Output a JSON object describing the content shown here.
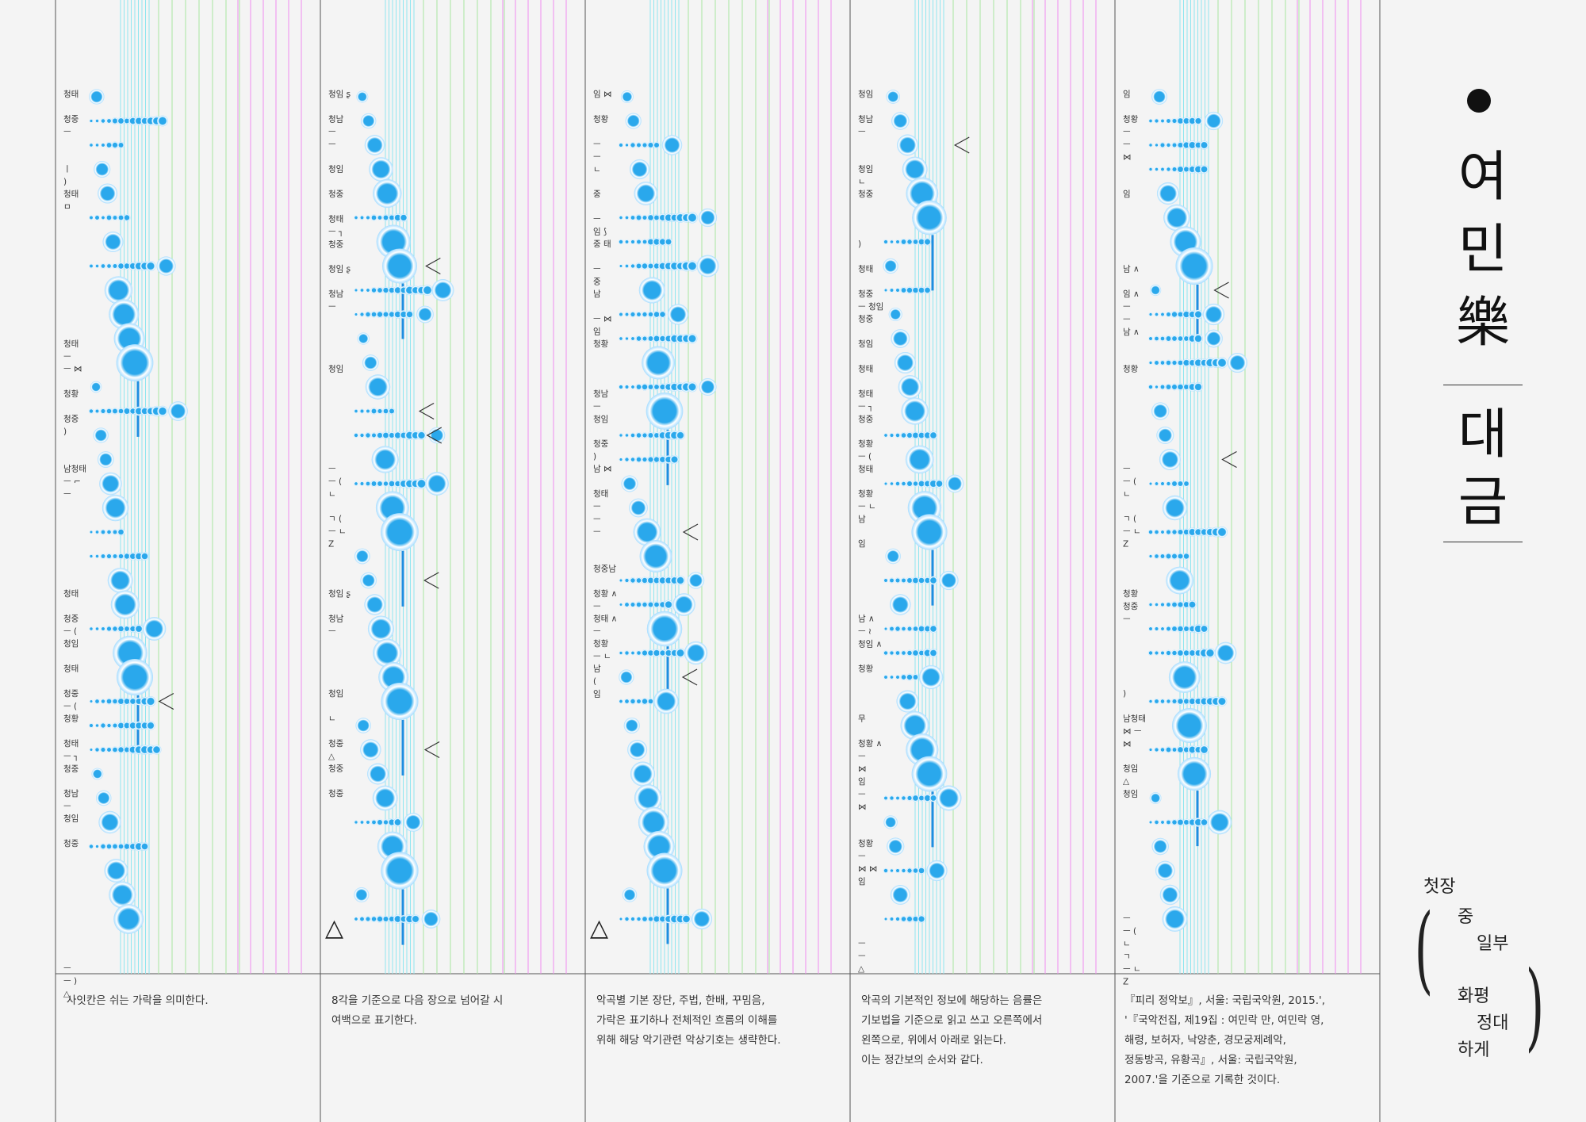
{
  "score": {
    "columns": [
      {
        "id": "col1",
        "labels": [
          {
            "lines": [
              "청태"
            ],
            "row": 0
          },
          {
            "lines": [
              "청중",
              "ㅡ"
            ],
            "row": 1
          },
          {
            "lines": [
              "ㅣ",
              ")"
            ],
            "row": 3
          },
          {
            "lines": [
              "청태",
              "ㅁ"
            ],
            "row": 4
          },
          {
            "lines": [
              "청태",
              "ㅡ"
            ],
            "row": 10
          },
          {
            "lines": [
              "ㅡ ⋈"
            ],
            "row": 11
          },
          {
            "lines": [
              "청황"
            ],
            "row": 12
          },
          {
            "lines": [
              "청중",
              ")"
            ],
            "row": 13
          },
          {
            "lines": [
              "남청태",
              "ㅡ ⌐",
              "ㅡ"
            ],
            "row": 15
          },
          {
            "lines": [
              "청태"
            ],
            "row": 20
          },
          {
            "lines": [
              "청중",
              "ㅡ ("
            ],
            "row": 21
          },
          {
            "lines": [
              "청임"
            ],
            "row": 22
          },
          {
            "lines": [
              "청태"
            ],
            "row": 23
          },
          {
            "lines": [
              "청중",
              "ㅡ ("
            ],
            "row": 24
          },
          {
            "lines": [
              "청황"
            ],
            "row": 25
          },
          {
            "lines": [
              "청태",
              "ㅡ ┐",
              "청중"
            ],
            "row": 26
          },
          {
            "lines": [
              "청남",
              "ㅡ"
            ],
            "row": 28
          },
          {
            "lines": [
              "청임"
            ],
            "row": 29
          },
          {
            "lines": [
              "청중"
            ],
            "row": 30
          },
          {
            "lines": [
              "ㅡ",
              "ㅡ )",
              "△"
            ],
            "row": 35
          }
        ]
      },
      {
        "id": "col2",
        "labels": [
          {
            "lines": [
              "청임 ʂ"
            ],
            "row": 0
          },
          {
            "lines": [
              "청남",
              "ㅡ",
              "ㅡ"
            ],
            "row": 1
          },
          {
            "lines": [
              "청임"
            ],
            "row": 3
          },
          {
            "lines": [
              "청중"
            ],
            "row": 4
          },
          {
            "lines": [
              "청태",
              "ㅡ ┐",
              "청중"
            ],
            "row": 5
          },
          {
            "lines": [
              "청임 ʂ"
            ],
            "row": 7
          },
          {
            "lines": [
              "청남",
              "ㅡ"
            ],
            "row": 8
          },
          {
            "lines": [
              "청임"
            ],
            "row": 11
          },
          {
            "lines": [
              "ㅡ",
              "ㅡ (",
              "ㄴ"
            ],
            "row": 15
          },
          {
            "lines": [
              "ㄱ (",
              "ㅡ ㄴ",
              "Z"
            ],
            "row": 17
          },
          {
            "lines": [
              "청임 ʂ"
            ],
            "row": 20
          },
          {
            "lines": [
              "청남",
              "ㅡ"
            ],
            "row": 21
          },
          {
            "lines": [
              "청임"
            ],
            "row": 24
          },
          {
            "lines": [
              "ㄴ"
            ],
            "row": 25
          },
          {
            "lines": [
              "청중",
              "△"
            ],
            "row": 26
          },
          {
            "lines": [
              "청중"
            ],
            "row": 27
          },
          {
            "lines": [
              "청중"
            ],
            "row": 28
          }
        ],
        "bottom_mark": "△"
      },
      {
        "id": "col3",
        "labels": [
          {
            "lines": [
              "임 ⋈"
            ],
            "row": 0
          },
          {
            "lines": [
              "청황"
            ],
            "row": 1
          },
          {
            "lines": [
              "ㅡ",
              "ㅡ",
              "ㄴ"
            ],
            "row": 2
          },
          {
            "lines": [
              "중"
            ],
            "row": 4
          },
          {
            "lines": [
              "ㅡ",
              "임 ⟆"
            ],
            "row": 5
          },
          {
            "lines": [
              "중 태"
            ],
            "row": 6
          },
          {
            "lines": [
              "ㅡ",
              "중"
            ],
            "row": 7
          },
          {
            "lines": [
              "남"
            ],
            "row": 8
          },
          {
            "lines": [
              "ㅡ ⋈",
              "임"
            ],
            "row": 9
          },
          {
            "lines": [
              "청황"
            ],
            "row": 10
          },
          {
            "lines": [
              "청남",
              "ㅡ",
              "청임"
            ],
            "row": 12
          },
          {
            "lines": [
              "청중",
              ")"
            ],
            "row": 14
          },
          {
            "lines": [
              "남 ⋈"
            ],
            "row": 15
          },
          {
            "lines": [
              "청태",
              "ㅡ",
              "ㅡ",
              "ㅡ"
            ],
            "row": 16
          },
          {
            "lines": [
              "청중남"
            ],
            "row": 19
          },
          {
            "lines": [
              "청황 ∧",
              "ㅡ"
            ],
            "row": 20
          },
          {
            "lines": [
              "청태 ∧",
              "ㅡ"
            ],
            "row": 21
          },
          {
            "lines": [
              "청황",
              "ㅡ ㄴ"
            ],
            "row": 22
          },
          {
            "lines": [
              "남",
              "(",
              "임"
            ],
            "row": 23
          }
        ],
        "bottom_mark": "△"
      },
      {
        "id": "col4",
        "labels": [
          {
            "lines": [
              "청임"
            ],
            "row": 0
          },
          {
            "lines": [
              "청남",
              "ㅡ"
            ],
            "row": 1
          },
          {
            "lines": [
              "청임",
              "ㄴ"
            ],
            "row": 3
          },
          {
            "lines": [
              "청중"
            ],
            "row": 4
          },
          {
            "lines": [
              ")"
            ],
            "row": 6
          },
          {
            "lines": [
              "청태"
            ],
            "row": 7
          },
          {
            "lines": [
              "청중",
              "ㅡ 청임"
            ],
            "row": 8
          },
          {
            "lines": [
              "청중"
            ],
            "row": 9
          },
          {
            "lines": [
              "청임"
            ],
            "row": 10
          },
          {
            "lines": [
              "청태"
            ],
            "row": 11
          },
          {
            "lines": [
              "청태",
              "ㅡ ┐",
              "청중"
            ],
            "row": 12
          },
          {
            "lines": [
              "청황",
              "ㅡ (",
              "청태"
            ],
            "row": 14
          },
          {
            "lines": [
              "청황",
              "ㅡ ㄴ",
              "남"
            ],
            "row": 16
          },
          {
            "lines": [
              "임"
            ],
            "row": 18
          },
          {
            "lines": [
              "남 ∧",
              "ㅡ ≀",
              "청임 ∧"
            ],
            "row": 21
          },
          {
            "lines": [
              "청황"
            ],
            "row": 23
          },
          {
            "lines": [
              "무"
            ],
            "row": 25
          },
          {
            "lines": [
              "청황 ∧",
              "ㅡ",
              "⋈",
              "임",
              "ㅡ",
              "⋈"
            ],
            "row": 26
          },
          {
            "lines": [
              "청황",
              "ㅡ",
              "⋈ ⋈",
              "임"
            ],
            "row": 30
          },
          {
            "lines": [
              "ㅡ",
              "ㅡ",
              "△"
            ],
            "row": 34
          }
        ]
      },
      {
        "id": "col5",
        "labels": [
          {
            "lines": [
              "임"
            ],
            "row": 0
          },
          {
            "lines": [
              "청황",
              "ㅡ",
              "ㅡ",
              "⋈"
            ],
            "row": 1
          },
          {
            "lines": [
              "임"
            ],
            "row": 4
          },
          {
            "lines": [
              "남 ∧"
            ],
            "row": 7
          },
          {
            "lines": [
              "임 ∧",
              "ㅡ",
              "ㅡ",
              "남 ∧"
            ],
            "row": 8
          },
          {
            "lines": [
              "청황"
            ],
            "row": 11
          },
          {
            "lines": [
              "ㅡ",
              "ㅡ (",
              "ㄴ"
            ],
            "row": 15
          },
          {
            "lines": [
              "ㄱ (",
              "ㅡ ㄴ",
              "Z"
            ],
            "row": 17
          },
          {
            "lines": [
              "청황",
              "청중",
              "ㅡ"
            ],
            "row": 20
          },
          {
            "lines": [
              ")"
            ],
            "row": 24
          },
          {
            "lines": [
              "남청태",
              "⋈ ㅡ",
              "⋈"
            ],
            "row": 25
          },
          {
            "lines": [
              "청임",
              "△",
              "청임"
            ],
            "row": 27
          },
          {
            "lines": [
              "ㅡ",
              "ㅡ (",
              "ㄴ",
              "ㄱ",
              "ㅡ ㄴ",
              "Z"
            ],
            "row": 33
          }
        ]
      }
    ],
    "colors": {
      "cyan_lines": "#8fe6ef",
      "green_lines": "#a7e6a0",
      "magenta_lines": "#f08cf0",
      "blue_note": "#2aa8ec",
      "blue_note_light": "#a6dcff",
      "blue_stem": "#1e8ee0",
      "frame": "#555555"
    }
  },
  "captions": [
    "사잇칸은 쉬는 가락을 의미한다.",
    "8각을 기준으로 다음 장으로 넘어갈 시\n여백으로 표기한다.",
    "악곡별 기본 장단, 주법, 한배, 꾸밈음,\n가락은 표기하나 전체적인 흐름의 이해를\n위해 해당 악기관련 악상기호는 생략한다.",
    "악곡의 기본적인 정보에 해당하는 음률은\n기보법을 기준으로 읽고 쓰고 오른쪽에서\n왼쪽으로, 위에서 아래로 읽는다.\n이는 정간보의 순서와 같다.",
    "『피리 정악보』, 서울: 국립국악원, 2015.',\n'『국악전집, 제19집 : 여민락 만, 여민락 영,\n해령, 보허자, 낙양춘, 경모궁제례악,\n정동방곡, 유황곡』, 서울: 국립국악원,\n2007.'을 기준으로 기록한 것이다."
  ],
  "title": {
    "chars": [
      "여",
      "민",
      "樂"
    ],
    "instrument": [
      "대",
      "금"
    ]
  },
  "subtitle": {
    "line1": [
      "첫장",
      "중",
      "일부"
    ],
    "line2": [
      "화평",
      "정대",
      "하게"
    ]
  }
}
